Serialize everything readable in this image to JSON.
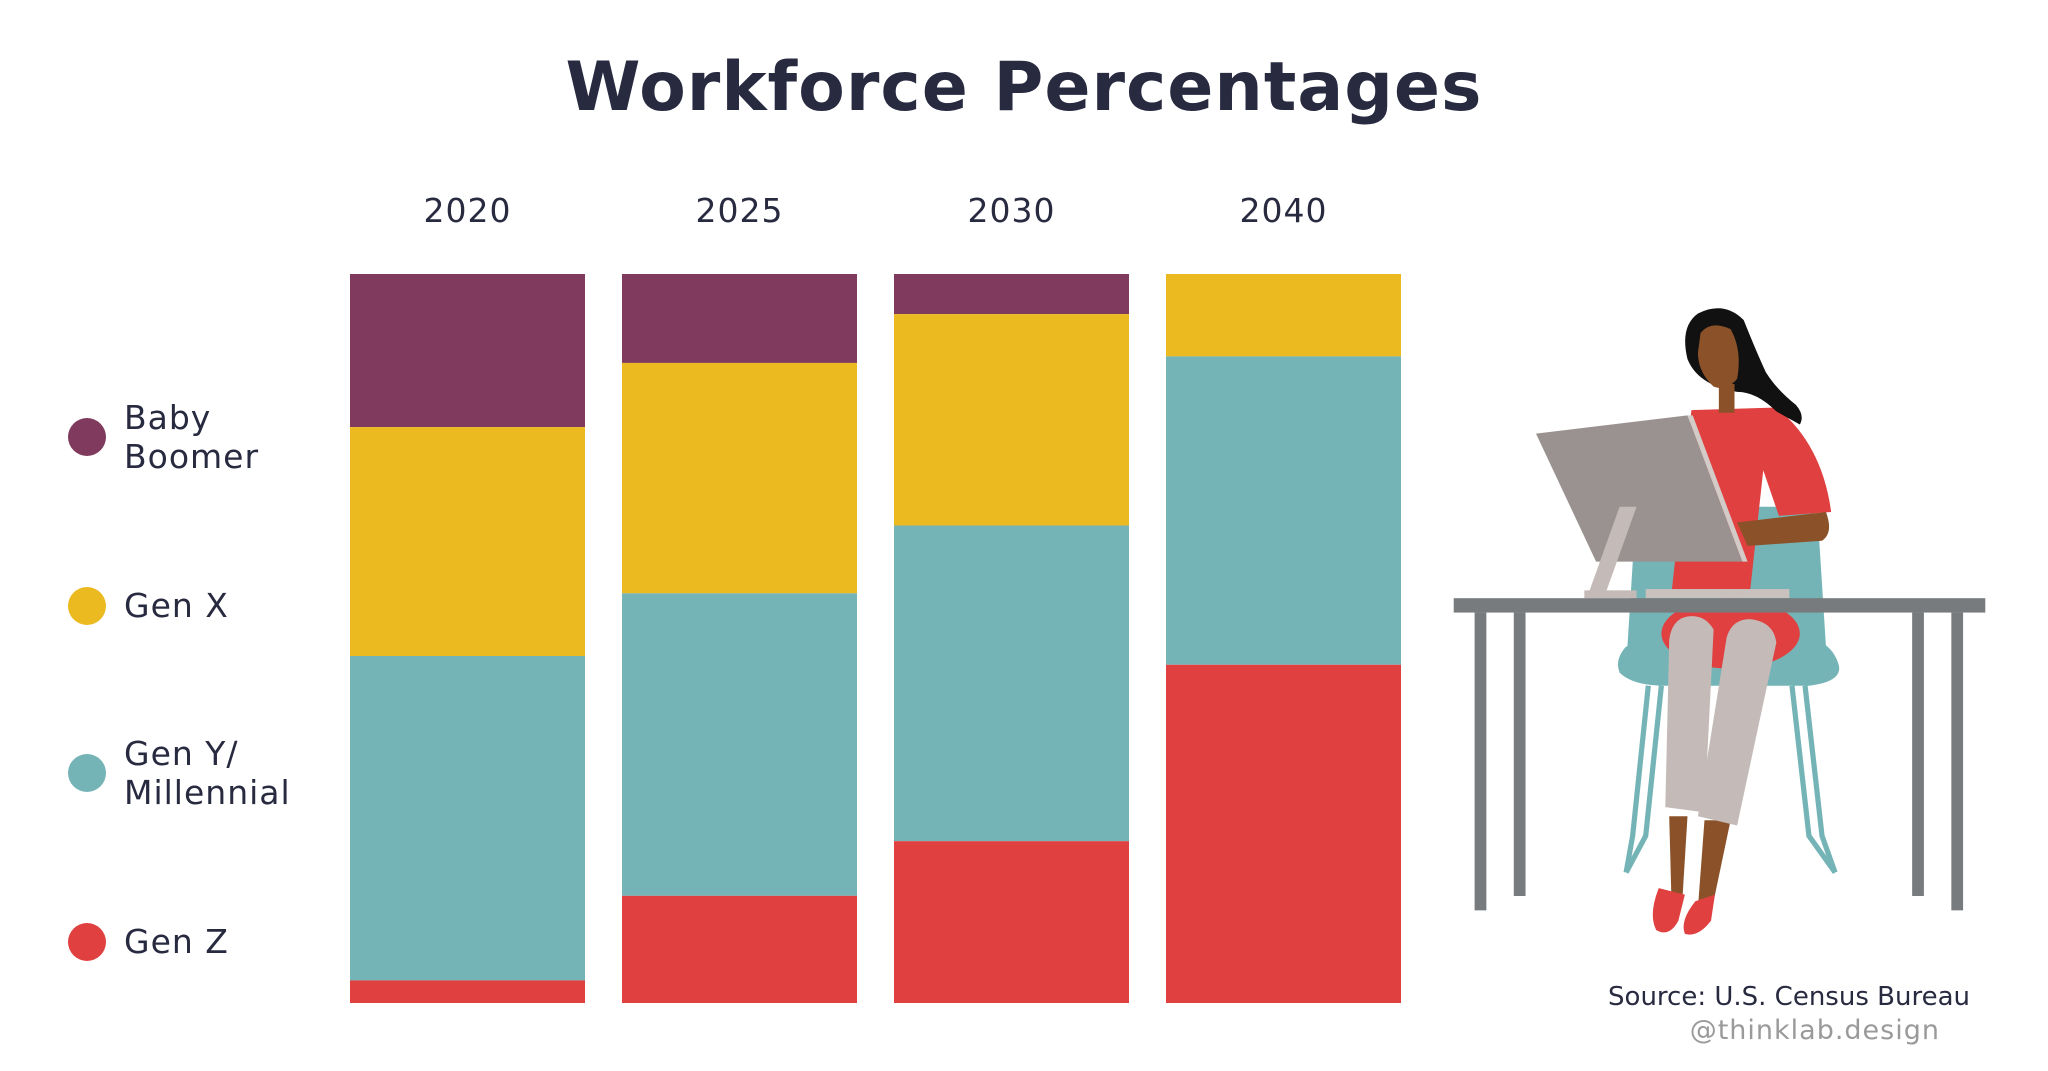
{
  "chart_data": {
    "type": "bar",
    "stacked": true,
    "normalized_percent": true,
    "title": "Workforce Percentages",
    "categories": [
      "2020",
      "2025",
      "2030",
      "2040"
    ],
    "ylim": [
      0,
      100
    ],
    "grid": false,
    "legend_placement": "left",
    "series": [
      {
        "name": "Baby\nBoomer",
        "color": "#7f3a5d",
        "values": [
          21.0,
          12.2,
          5.5,
          0
        ]
      },
      {
        "name": "Gen X",
        "color": "#ebb920",
        "values": [
          31.4,
          31.6,
          29.0,
          11.3
        ]
      },
      {
        "name": "Gen Y/\nMillennial",
        "color": "#75b4b6",
        "values": [
          44.5,
          41.5,
          43.3,
          42.3
        ]
      },
      {
        "name": "Gen Z",
        "color": "#e04040",
        "values": [
          3.1,
          14.7,
          22.2,
          46.4
        ]
      }
    ]
  },
  "footer": {
    "source": "Source: U.S. Census Bureau",
    "handle": "@thinklab.design"
  }
}
